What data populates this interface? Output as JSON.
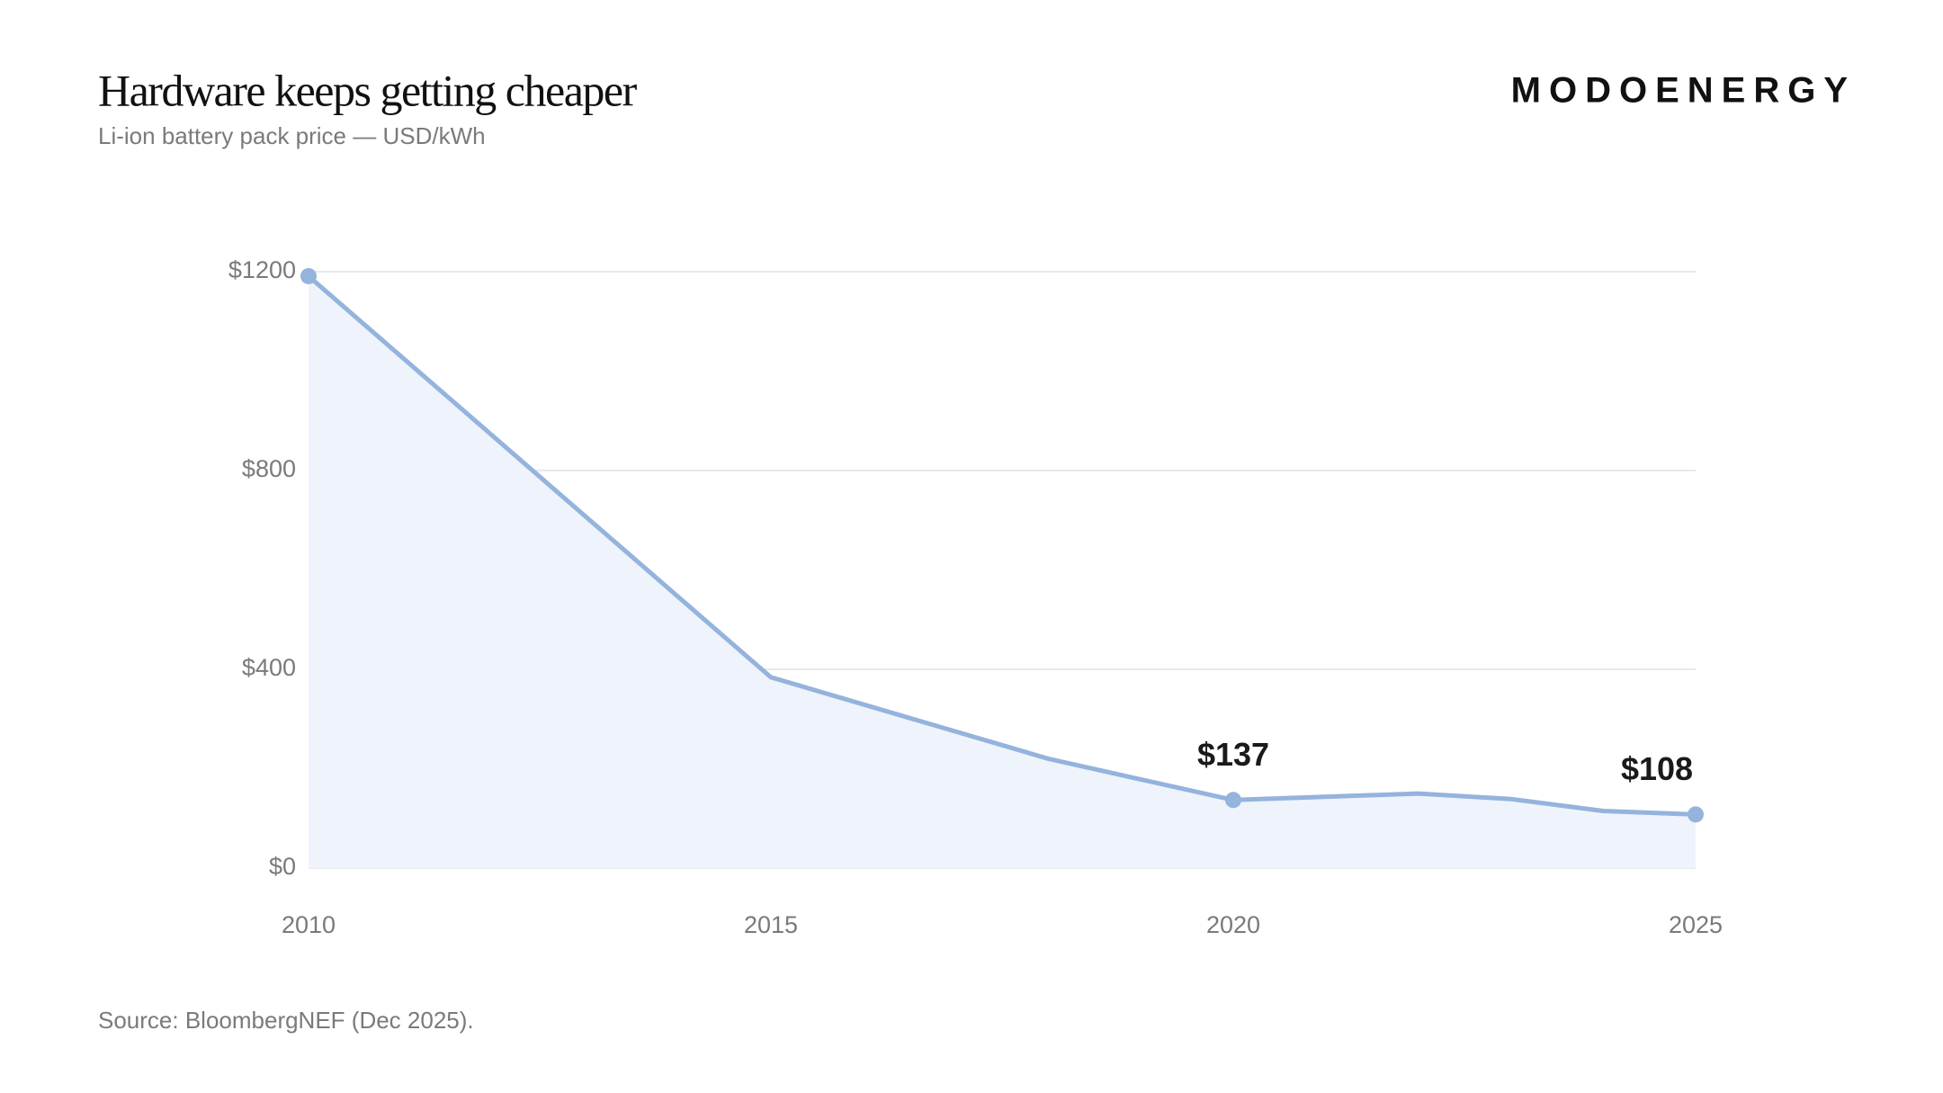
{
  "header": {
    "title": "Hardware keeps getting cheaper",
    "subtitle": "Li-ion battery pack price — USD/kWh",
    "logo": "MODOENERGY"
  },
  "chart_data": {
    "type": "line",
    "x": [
      2010,
      2015,
      2018,
      2020,
      2022,
      2023,
      2024,
      2025
    ],
    "series": [
      {
        "name": "Li-ion battery pack price",
        "color": "#94b3dd",
        "values": [
          1191,
          384,
          220,
          137,
          150,
          139,
          115,
          108
        ],
        "value_labels": [
          null,
          null,
          null,
          "$137",
          null,
          null,
          null,
          "$108"
        ]
      }
    ],
    "xlim": [
      2010,
      2025
    ],
    "xticks": [
      2010,
      2015,
      2020,
      2025
    ],
    "ylim": [
      0,
      1200
    ],
    "yticks": [
      {
        "value": 0,
        "label": "$0"
      },
      {
        "value": 400,
        "label": "$400"
      },
      {
        "value": 800,
        "label": "$800"
      },
      {
        "value": 1200,
        "label": "$1200"
      }
    ],
    "grid": true,
    "area_fill": "#eff3fb"
  },
  "footer": {
    "source": "Source: BloombergNEF (Dec 2025)."
  }
}
